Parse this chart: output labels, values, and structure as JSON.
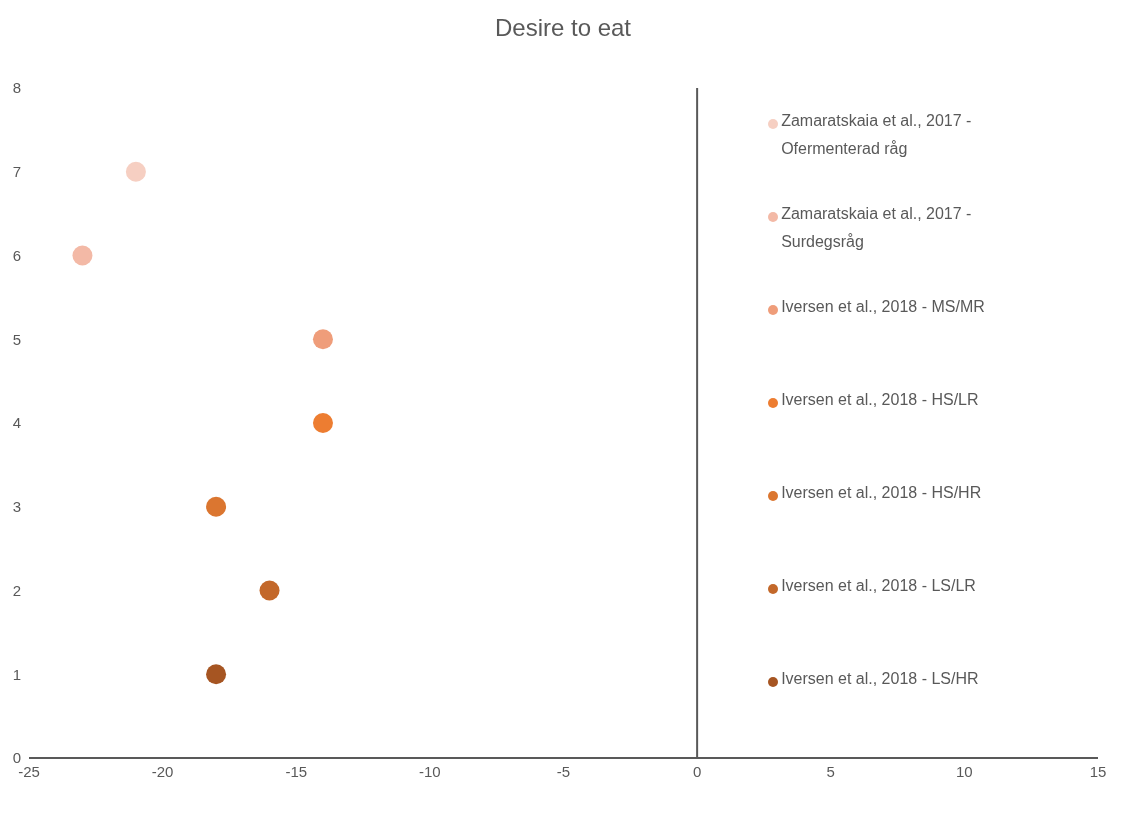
{
  "chart_data": {
    "type": "scatter",
    "title": "Desire to eat",
    "xlim": [
      -25,
      15
    ],
    "xticks": [
      -25,
      -20,
      -15,
      -10,
      -5,
      0,
      5,
      10,
      15
    ],
    "ylim": [
      0,
      8
    ],
    "yticks": [
      0,
      1,
      2,
      3,
      4,
      5,
      6,
      7,
      8
    ],
    "legend": "right",
    "marker": "circle",
    "series": [
      {
        "name": "Zamaratskaia et al., 2017 - Ofermenterad råg",
        "color": "#f6cfc2",
        "x": [
          -21
        ],
        "values": [
          7
        ]
      },
      {
        "name": "Zamaratskaia et al., 2017 - Surdegsråg",
        "color": "#f3b9a6",
        "x": [
          -23
        ],
        "values": [
          6
        ]
      },
      {
        "name": "Iversen et al., 2018 - MS/MR",
        "color": "#ef9d7a",
        "x": [
          -14
        ],
        "values": [
          5
        ]
      },
      {
        "name": "Iversen et al., 2018 - HS/LR",
        "color": "#ed7d31",
        "x": [
          -14
        ],
        "values": [
          4
        ]
      },
      {
        "name": "Iversen et al., 2018 - HS/HR",
        "color": "#db7630",
        "x": [
          -18
        ],
        "values": [
          3
        ]
      },
      {
        "name": "Iversen et al., 2018 - LS/LR",
        "color": "#c3682a",
        "x": [
          -16
        ],
        "values": [
          2
        ]
      },
      {
        "name": "Iversen et al., 2018 - LS/HR",
        "color": "#a65522",
        "x": [
          -18
        ],
        "values": [
          1
        ]
      }
    ]
  }
}
